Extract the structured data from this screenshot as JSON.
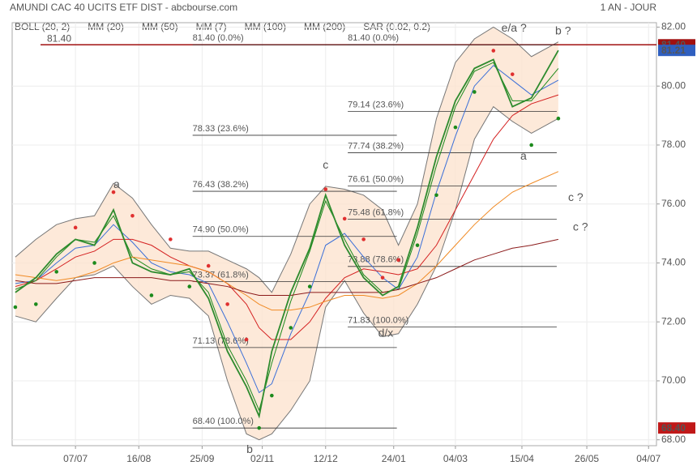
{
  "chart_data": {
    "type": "line",
    "title": "AMUNDI CAC 40 UCITS ETF DIST - abcbourse.com",
    "period": "1 AN - JOUR",
    "xlim": [
      0,
      407
    ],
    "ylim": [
      67.8,
      82.15
    ],
    "xticks": [
      {
        "value": 40,
        "label": "07/07"
      },
      {
        "value": 80,
        "label": "16/08"
      },
      {
        "value": 120,
        "label": "25/09"
      },
      {
        "value": 158,
        "label": "02/11"
      },
      {
        "value": 198,
        "label": "12/12"
      },
      {
        "value": 241,
        "label": "24/01"
      },
      {
        "value": 280,
        "label": "04/03"
      },
      {
        "value": 322,
        "label": "15/04"
      },
      {
        "value": 363,
        "label": "26/05"
      },
      {
        "value": 402,
        "label": "04/07"
      }
    ],
    "yticks": [
      {
        "value": 68,
        "label": "68.00"
      },
      {
        "value": 70,
        "label": "70.00"
      },
      {
        "value": 72,
        "label": "72.00"
      },
      {
        "value": 74,
        "label": "74.00"
      },
      {
        "value": 76,
        "label": "76.00"
      },
      {
        "value": 78,
        "label": "78.00"
      },
      {
        "value": 80,
        "label": "80.00"
      },
      {
        "value": 82,
        "label": "82.00"
      }
    ],
    "x": [
      2,
      15,
      28,
      40,
      52,
      64,
      76,
      88,
      100,
      112,
      124,
      136,
      148,
      156,
      164,
      176,
      188,
      198,
      210,
      222,
      234,
      244,
      256,
      268,
      280,
      292,
      304,
      316,
      328,
      345
    ],
    "price": {
      "color": "#2e8b2e",
      "values": [
        73.0,
        73.5,
        74.3,
        74.8,
        74.6,
        75.8,
        74.0,
        73.7,
        73.6,
        73.8,
        72.8,
        71.0,
        69.8,
        68.8,
        71.0,
        73.0,
        74.5,
        76.3,
        74.6,
        73.5,
        72.9,
        73.2,
        75.2,
        77.6,
        79.5,
        80.6,
        80.9,
        79.3,
        79.6,
        81.21
      ]
    },
    "bollinger": {
      "name": "BOLL (20, 2)",
      "color": "#777777",
      "fill": "#fde3d0",
      "upper": [
        74.2,
        74.8,
        75.3,
        75.5,
        75.6,
        76.7,
        76.2,
        75.3,
        74.5,
        74.4,
        74.4,
        74.1,
        73.8,
        73.5,
        73.0,
        74.3,
        76.0,
        76.6,
        76.5,
        76.3,
        75.8,
        74.6,
        76.0,
        78.9,
        80.8,
        81.6,
        82.0,
        81.6,
        81.0,
        81.5
      ],
      "lower": [
        72.2,
        72.0,
        72.8,
        73.5,
        73.6,
        73.9,
        73.2,
        72.6,
        72.9,
        72.8,
        72.2,
        70.0,
        68.2,
        68.0,
        68.2,
        69.0,
        70.0,
        72.5,
        73.4,
        72.3,
        71.5,
        71.6,
        72.6,
        73.9,
        75.8,
        78.2,
        79.3,
        78.8,
        78.4,
        78.9
      ]
    },
    "series": [
      {
        "name": "MM (20)",
        "color": "#3b6fd8",
        "values": [
          73.3,
          73.4,
          74.0,
          74.5,
          74.6,
          75.3,
          74.7,
          74.0,
          73.7,
          73.6,
          73.3,
          72.0,
          70.6,
          69.6,
          69.9,
          71.6,
          73.0,
          74.6,
          75.0,
          74.2,
          73.5,
          73.1,
          74.2,
          76.4,
          78.3,
          80.0,
          80.7,
          80.2,
          79.7,
          80.2
        ]
      },
      {
        "name": "MM (50)",
        "color": "#d42020",
        "values": [
          73.2,
          73.4,
          73.8,
          74.2,
          74.4,
          74.8,
          74.8,
          74.6,
          74.2,
          73.9,
          73.7,
          73.3,
          72.6,
          71.8,
          71.4,
          71.4,
          72.0,
          72.8,
          73.5,
          73.8,
          73.7,
          73.6,
          73.8,
          74.6,
          75.8,
          77.0,
          78.2,
          79.0,
          79.4,
          79.7
        ]
      },
      {
        "name": "MM (7)",
        "color": "#1c8a1c",
        "values": [
          73.1,
          73.4,
          74.2,
          74.8,
          74.7,
          75.6,
          74.2,
          73.8,
          73.6,
          73.7,
          73.0,
          71.2,
          70.0,
          69.0,
          70.6,
          72.7,
          74.4,
          76.1,
          74.8,
          73.6,
          73.0,
          73.1,
          75.0,
          77.3,
          79.3,
          80.5,
          80.8,
          79.5,
          79.5,
          80.6
        ]
      },
      {
        "name": "MM (100)",
        "color": "#f08a24",
        "values": [
          73.6,
          73.5,
          73.4,
          73.5,
          73.7,
          74.0,
          74.2,
          74.1,
          74.0,
          73.9,
          73.7,
          73.3,
          72.9,
          72.6,
          72.4,
          72.4,
          72.5,
          72.7,
          72.9,
          72.9,
          72.8,
          72.9,
          73.3,
          73.9,
          74.6,
          75.3,
          75.9,
          76.4,
          76.7,
          77.1
        ]
      },
      {
        "name": "MM (200)",
        "color": "#8b1a1a",
        "values": [
          73.4,
          73.3,
          73.3,
          73.4,
          73.5,
          73.5,
          73.5,
          73.5,
          73.4,
          73.4,
          73.3,
          73.2,
          73.0,
          72.9,
          72.9,
          72.9,
          73.0,
          73.0,
          73.0,
          73.0,
          73.0,
          73.1,
          73.3,
          73.5,
          73.8,
          74.1,
          74.3,
          74.5,
          74.6,
          74.8
        ]
      }
    ],
    "sar": {
      "name": "SAR (0.02, 0.2)",
      "color": "#e03030",
      "color_below": "#1c8a1c",
      "values": [
        72.5,
        72.6,
        73.7,
        75.2,
        74.0,
        76.4,
        75.6,
        72.9,
        74.8,
        73.2,
        73.9,
        72.6,
        71.4,
        68.4,
        69.5,
        71.8,
        73.2,
        76.5,
        75.5,
        74.8,
        73.5,
        74.1,
        74.6,
        76.3,
        78.6,
        79.8,
        81.2,
        80.4,
        78.0,
        78.9
      ]
    },
    "reference_line": {
      "value": 81.4,
      "label": "81.40",
      "color": "#a01010"
    },
    "fibonacci": [
      {
        "x_range": [
          114,
          243
        ],
        "levels": [
          {
            "value": 81.4,
            "label": "81.40 (0.0%)"
          },
          {
            "value": 78.33,
            "label": "78.33 (23.6%)"
          },
          {
            "value": 76.43,
            "label": "76.43 (38.2%)"
          },
          {
            "value": 74.9,
            "label": "74.90 (50.0%)"
          },
          {
            "value": 73.37,
            "label": "73.37 (61.8%)"
          },
          {
            "value": 71.13,
            "label": "71.13 (78.6%)"
          },
          {
            "value": 68.4,
            "label": "68.40 (100.0%)"
          }
        ]
      },
      {
        "x_range": [
          212,
          344
        ],
        "levels": [
          {
            "value": 81.4,
            "label": "81.40 (0.0%)"
          },
          {
            "value": 79.14,
            "label": "79.14 (23.6%)"
          },
          {
            "value": 77.74,
            "label": "77.74 (38.2%)"
          },
          {
            "value": 76.61,
            "label": "76.61 (50.0%)"
          },
          {
            "value": 75.48,
            "label": "75.48 (61.8%)"
          },
          {
            "value": 73.88,
            "label": "73.88 (78.6%)"
          },
          {
            "value": 71.83,
            "label": "71.83 (100.0%)"
          }
        ]
      }
    ],
    "annotations": [
      {
        "text": "a",
        "x": 66,
        "y": 76.65,
        "color": "#2233aa"
      },
      {
        "text": "b",
        "x": 150,
        "y": 67.65,
        "color": "#2233aa"
      },
      {
        "text": "c",
        "x": 198,
        "y": 77.3,
        "color": "#2233aa"
      },
      {
        "text": "d/x",
        "x": 236,
        "y": 71.6,
        "color": "#2233aa"
      },
      {
        "text": "e/a ?",
        "x": 317,
        "y": 81.95,
        "color": "#2233aa"
      },
      {
        "text": "b ?",
        "x": 348,
        "y": 81.85,
        "color": "#c01818"
      },
      {
        "text": "a",
        "x": 323,
        "y": 77.6,
        "color": "#c01818"
      },
      {
        "text": "c ?",
        "x": 356,
        "y": 76.2,
        "color": "#c01818"
      },
      {
        "text": "c ?",
        "x": 359,
        "y": 75.2,
        "color": "#c01818"
      }
    ],
    "price_tags": [
      {
        "value": 81.4,
        "label": "81.40",
        "color": "#a01010"
      },
      {
        "value": 81.21,
        "label": "81.21",
        "color": "#2f5fc0"
      },
      {
        "value": 68.4,
        "label": "68.40",
        "color": "#c01818"
      }
    ]
  }
}
